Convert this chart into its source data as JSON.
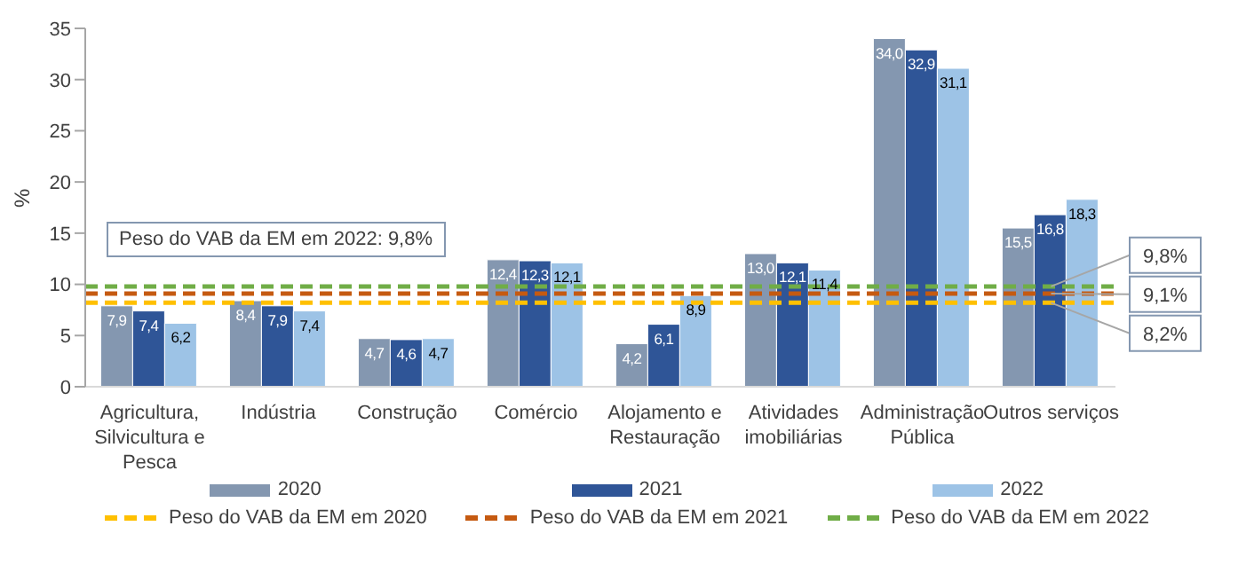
{
  "chart_data": {
    "type": "bar",
    "ylabel": "%",
    "categories": [
      "Agricultura, Silvicultura e Pesca",
      "Indústria",
      "Construção",
      "Comércio",
      "Alojamento e Restauração",
      "Atividades imobiliárias",
      "Administração Pública",
      "Outros serviços"
    ],
    "series": [
      {
        "name": "2020",
        "color": "#8497b0",
        "values": [
          7.9,
          8.4,
          4.7,
          12.4,
          4.2,
          13.0,
          34.0,
          15.5
        ],
        "value_labels": [
          "7,9",
          "8,4",
          "4,7",
          "12,4",
          "4,2",
          "13,0",
          "34,0",
          "15,5"
        ]
      },
      {
        "name": "2021",
        "color": "#2f5597",
        "values": [
          7.4,
          7.9,
          4.6,
          12.3,
          6.1,
          12.1,
          32.9,
          16.8
        ],
        "value_labels": [
          "7,4",
          "7,9",
          "4,6",
          "12,3",
          "6,1",
          "12,1",
          "32,9",
          "16,8"
        ]
      },
      {
        "name": "2022",
        "color": "#9dc3e6",
        "values": [
          6.2,
          7.4,
          4.7,
          12.1,
          8.9,
          11.4,
          31.1,
          18.3
        ],
        "value_labels": [
          "6,2",
          "7,4",
          "4,7",
          "12,1",
          "8,9",
          "11,4",
          "31,1",
          "18,3"
        ]
      }
    ],
    "ylim": [
      0,
      35
    ],
    "yticks": [
      0,
      5,
      10,
      15,
      20,
      25,
      30,
      35
    ],
    "grid": false,
    "legend": "bottom",
    "ref_lines": [
      {
        "axis": "y",
        "value": 8.2,
        "label": "Peso do VAB da EM em 2020",
        "color": "#ffc000",
        "line_style": "dashed"
      },
      {
        "axis": "y",
        "value": 9.1,
        "label": "Peso do VAB da EM em 2021",
        "color": "#c55a11",
        "line_style": "dashed"
      },
      {
        "axis": "y",
        "value": 9.8,
        "label": "Peso do VAB da EM em 2022",
        "color": "#70ad47",
        "line_style": "dashed"
      }
    ],
    "annotations": [
      "Peso do VAB da EM em 2022: 9,8%",
      {
        "text": "9,8%",
        "x": "Outros serviços",
        "y": 9.8
      },
      {
        "text": "9,1%",
        "x": "Outros serviços",
        "y": 9.1
      },
      {
        "text": "8,2%",
        "x": "Outros serviços",
        "y": 8.2
      }
    ]
  }
}
